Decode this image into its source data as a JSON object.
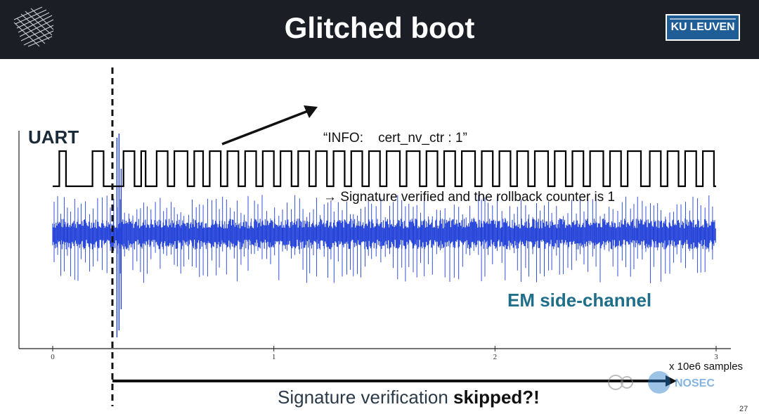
{
  "header": {
    "title": "Glitched boot",
    "logo_text": "KU LEUVEN",
    "colors": {
      "background": "#1b1e24",
      "logo": "#1f5d96"
    }
  },
  "annotation": {
    "line1": "“INFO:    cert_nv_ctr : 1”",
    "line2": "→ Signature verified and the rollback counter is 1"
  },
  "labels": {
    "uart": "UART",
    "em": "EM side-channel"
  },
  "chart_data": {
    "type": "line",
    "x_unit": "x 10e6 samples",
    "x_ticks": [
      "0",
      "1",
      "2",
      "3"
    ],
    "xlim": [
      0,
      3.1
    ],
    "glitch_marker_x": 0.27,
    "skipped_span": {
      "from": 0.27,
      "to": 3.0
    },
    "series": [
      {
        "name": "UART",
        "color": "#000000",
        "levels": [
          "low",
          "high"
        ],
        "edges": [
          0.03,
          0.06,
          0.18,
          0.23,
          0.32,
          0.37,
          0.4,
          0.42,
          0.47,
          0.52,
          0.55,
          0.61,
          0.64,
          0.68,
          0.71,
          0.76,
          0.79,
          0.84,
          0.87,
          0.92,
          0.95,
          1.0,
          1.03,
          1.08,
          1.11,
          1.16,
          1.19,
          1.24,
          1.27,
          1.32,
          1.35,
          1.4,
          1.43,
          1.48,
          1.51,
          1.57,
          1.6,
          1.66,
          1.69,
          1.74,
          1.77,
          1.82,
          1.85,
          1.91,
          1.94,
          1.99,
          2.02,
          2.07,
          2.1,
          2.15,
          2.18,
          2.24,
          2.27,
          2.32,
          2.35,
          2.4,
          2.43,
          2.49,
          2.52,
          2.57,
          2.6,
          2.66,
          2.7,
          2.75,
          2.78,
          2.83,
          2.86,
          2.91,
          2.94,
          2.99
        ]
      },
      {
        "name": "EM side-channel",
        "color": "#1f3fd8",
        "description_amplitude": "dense noise band with periodic spikes; large glitch transient at ~0.30"
      }
    ]
  },
  "caption": {
    "prefix": "Signature verification ",
    "bold": "skipped?!"
  },
  "page_number": "27",
  "watermark": "NOSEC"
}
